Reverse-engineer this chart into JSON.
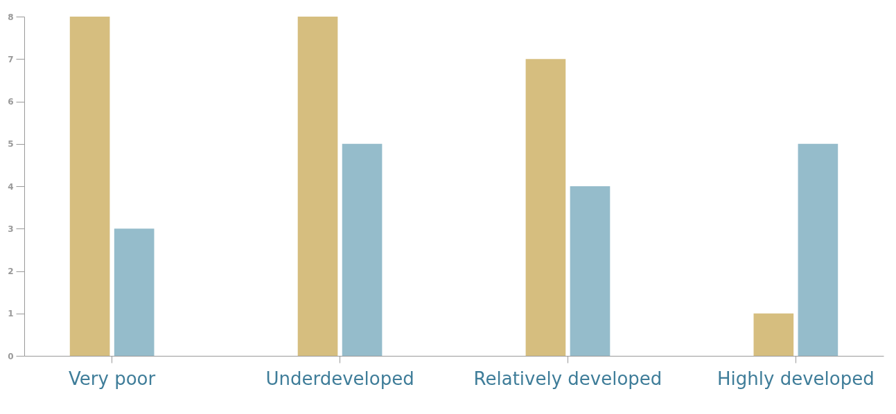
{
  "chart_data": {
    "type": "bar",
    "categories": [
      "Very poor",
      "Underdeveloped",
      "Relatively developed",
      "Highly developed"
    ],
    "series": [
      {
        "color": "#d6be7f",
        "values": [
          8,
          8,
          7,
          1
        ]
      },
      {
        "color": "#95bccb",
        "values": [
          3,
          5,
          4,
          5
        ]
      }
    ],
    "ylim": [
      0,
      8
    ],
    "yticks": [
      0,
      1,
      2,
      3,
      4,
      5,
      6,
      7,
      8
    ],
    "grid": false,
    "legend": false
  }
}
